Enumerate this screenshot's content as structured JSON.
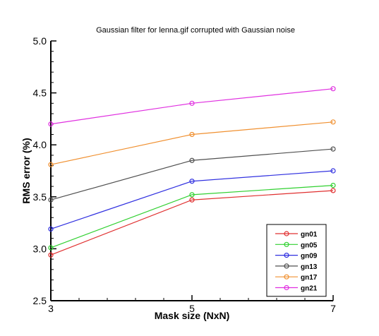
{
  "chart_data": {
    "type": "line",
    "title": "Gaussian filter for lenna.gif corrupted with Gaussian noise",
    "xlabel": "Mask size (NxN)",
    "ylabel": "RMS error (%)",
    "x": [
      3,
      5,
      7
    ],
    "x_ticks": [
      "3",
      "5",
      "7"
    ],
    "y_ticks": [
      "2.5",
      "3.0",
      "3.5",
      "4.0",
      "4.5",
      "5.0"
    ],
    "xlim": [
      3,
      7
    ],
    "ylim": [
      2.5,
      5.0
    ],
    "grid": false,
    "legend_position": "bottom-right",
    "marker": "open-circle",
    "series": [
      {
        "name": "gn01",
        "color": "#e03030",
        "values": [
          2.94,
          3.47,
          3.56
        ]
      },
      {
        "name": "gn05",
        "color": "#30d030",
        "values": [
          3.01,
          3.52,
          3.61
        ]
      },
      {
        "name": "gn09",
        "color": "#3030e0",
        "values": [
          3.19,
          3.65,
          3.75
        ]
      },
      {
        "name": "gn13",
        "color": "#505050",
        "values": [
          3.47,
          3.85,
          3.96
        ]
      },
      {
        "name": "gn17",
        "color": "#f09030",
        "values": [
          3.81,
          4.1,
          4.22
        ]
      },
      {
        "name": "gn21",
        "color": "#e030e0",
        "values": [
          4.2,
          4.4,
          4.54
        ]
      }
    ]
  }
}
